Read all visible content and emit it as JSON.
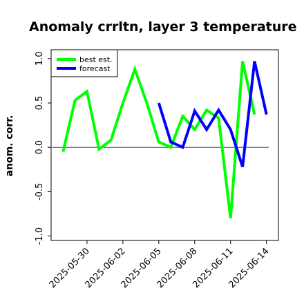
{
  "chart_data": {
    "type": "line",
    "title": "Anomaly crrltn, layer 3 temperature",
    "ylabel": "anom. corr.",
    "xlabel": "",
    "ylim": [
      -1.05,
      1.1
    ],
    "yticks": [
      -1.0,
      -0.5,
      0.0,
      0.5,
      1.0
    ],
    "ytick_labels": [
      "-1.0",
      "-0.5",
      "0.0",
      "0.5",
      "1.0"
    ],
    "xlim": [
      "2025-05-27",
      "2025-06-15"
    ],
    "xticks": [
      "2025-05-30",
      "2025-06-02",
      "2025-06-05",
      "2025-06-08",
      "2025-06-11",
      "2025-06-14"
    ],
    "highlight_tick": "2025-06-05",
    "highlight_color": "#228B22",
    "zero_line": true,
    "legend_position": "top-left",
    "legend": [
      "best est.",
      "forecast"
    ],
    "series": [
      {
        "name": "best est.",
        "color": "#00ff00",
        "x": [
          "2025-05-28",
          "2025-05-29",
          "2025-05-30",
          "2025-05-31",
          "2025-06-01",
          "2025-06-02",
          "2025-06-03",
          "2025-06-04",
          "2025-06-05",
          "2025-06-06",
          "2025-06-07",
          "2025-06-08",
          "2025-06-09",
          "2025-06-10",
          "2025-06-11",
          "2025-06-12",
          "2025-06-13"
        ],
        "y": [
          -0.05,
          0.53,
          0.63,
          -0.02,
          0.08,
          0.5,
          0.88,
          0.5,
          0.06,
          0.0,
          0.35,
          0.2,
          0.42,
          0.33,
          -0.8,
          0.97,
          0.37
        ]
      },
      {
        "name": "forecast",
        "color": "#0000ff",
        "x": [
          "2025-06-05",
          "2025-06-06",
          "2025-06-07",
          "2025-06-08",
          "2025-06-09",
          "2025-06-10",
          "2025-06-11",
          "2025-06-12",
          "2025-06-13",
          "2025-06-14"
        ],
        "y": [
          0.5,
          0.06,
          0.0,
          0.41,
          0.2,
          0.42,
          0.2,
          -0.22,
          0.97,
          0.37
        ]
      }
    ]
  }
}
